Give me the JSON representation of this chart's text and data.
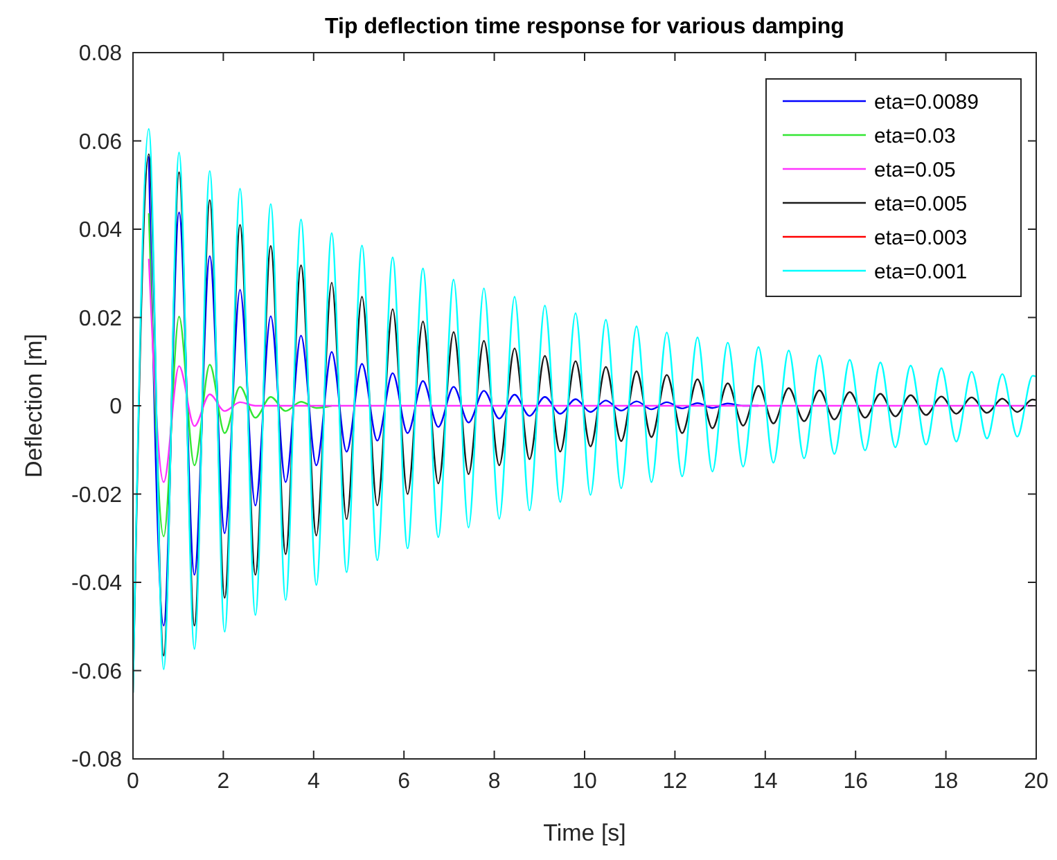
{
  "chart_data": {
    "type": "line",
    "title": "Tip deflection time response for various damping",
    "xlabel": "Time [s]",
    "ylabel": "Deflection [m]",
    "x": [
      0,
      0.35,
      0.68,
      1.02,
      1.36,
      1.7,
      2.03,
      2.37,
      2.71,
      3.05,
      3.38,
      3.72,
      4.06,
      4.4,
      4.73,
      5.07,
      5.41,
      5.75,
      6.08,
      6.42,
      6.76,
      7.1,
      7.43,
      7.77,
      8.11,
      8.45,
      8.78,
      9.12,
      9.46,
      9.8,
      10.13,
      10.47,
      10.81,
      11.15,
      11.48,
      11.82,
      12.16,
      12.5,
      12.83,
      13.17,
      13.51,
      13.85,
      14.18,
      14.52,
      14.86,
      15.2,
      15.53,
      15.87,
      16.21,
      16.55,
      16.88,
      17.22,
      17.56,
      17.9,
      18.23,
      18.57,
      18.91,
      19.25,
      19.58,
      19.92,
      20
    ],
    "series": [
      {
        "name": "eta=0.0089",
        "color": "#0000ff",
        "values": [
          null,
          0.0565,
          -0.0498,
          0.0438,
          -0.0383,
          0.0339,
          -0.0289,
          0.0263,
          -0.0226,
          0.0203,
          -0.0173,
          0.0159,
          -0.0135,
          0.0122,
          -0.0104,
          0.0095,
          -0.0079,
          0.0074,
          -0.0062,
          0.0056,
          -0.0048,
          0.0043,
          -0.0038,
          0.0034,
          -0.0029,
          0.0025,
          -0.0023,
          0.002,
          -0.0018,
          0.0015,
          -0.0014,
          0.0012,
          -0.0011,
          0.001,
          -0.0008,
          0.0008,
          -0.0006,
          0.0006,
          -0.0005,
          0.0005,
          0,
          0,
          null,
          null,
          null,
          null,
          null,
          null,
          null,
          null,
          null,
          null,
          null,
          null,
          null,
          null,
          null,
          null,
          null,
          null,
          null
        ]
      },
      {
        "name": "eta=0.03",
        "color": "#33e633",
        "values": [
          null,
          0.0436,
          -0.0296,
          0.0202,
          -0.0135,
          0.0093,
          -0.0062,
          0.0043,
          -0.0027,
          0.002,
          -0.0012,
          0.0009,
          -0.0005,
          0,
          null,
          null,
          null,
          null,
          null,
          null,
          null,
          null,
          null,
          null,
          null,
          null,
          null,
          null,
          null,
          null,
          null,
          null,
          null,
          null,
          null,
          null,
          null,
          null,
          null,
          null,
          null,
          null,
          null,
          null,
          null,
          null,
          null,
          null,
          null,
          null,
          null,
          null,
          null,
          null,
          null,
          null,
          null,
          null,
          null,
          null,
          null
        ]
      },
      {
        "name": "eta=0.05",
        "color": "#ff33ff",
        "values": [
          null,
          0.0333,
          -0.0173,
          0.009,
          -0.0046,
          0.0026,
          -0.0012,
          0.0008,
          0,
          0,
          0,
          0,
          0,
          0,
          0,
          0,
          0,
          0,
          0,
          0,
          0,
          0,
          0,
          0,
          0,
          0,
          0,
          0,
          0,
          0,
          0,
          0,
          0,
          0,
          0,
          0,
          0,
          0,
          0,
          0,
          0,
          0,
          0,
          0,
          0,
          0,
          0,
          0,
          0,
          0,
          0,
          0,
          0,
          0,
          0,
          0,
          0,
          0,
          0,
          0,
          null
        ]
      },
      {
        "name": "eta=0.005",
        "color": "#1a1a1a",
        "values": [
          -0.065,
          0.057,
          -0.0566,
          0.0529,
          -0.0498,
          0.0466,
          -0.0435,
          0.041,
          -0.0383,
          0.0362,
          -0.0336,
          0.0318,
          -0.0294,
          0.0279,
          -0.0257,
          0.0247,
          -0.0226,
          0.0219,
          -0.02,
          0.0191,
          -0.0176,
          0.0167,
          -0.0155,
          0.0147,
          -0.0135,
          0.013,
          -0.0121,
          0.0113,
          -0.0104,
          0.0101,
          -0.0092,
          0.0088,
          -0.008,
          0.0078,
          -0.0071,
          0.007,
          -0.0062,
          0.006,
          -0.0051,
          0.0051,
          -0.0045,
          0.0045,
          -0.004,
          0.004,
          -0.0035,
          0.0035,
          -0.0031,
          0.0031,
          -0.0027,
          0.0027,
          -0.0024,
          0.0024,
          -0.0021,
          0.0021,
          -0.0018,
          0.0019,
          -0.0016,
          0.0016,
          -0.0014,
          0.0014,
          0.0013
        ]
      },
      {
        "name": "eta=0.003",
        "color": "#ff0000",
        "values": [
          null,
          null,
          null,
          null,
          null,
          null,
          null,
          null,
          null,
          null,
          null,
          null,
          null,
          null,
          null,
          null,
          null,
          null,
          null,
          null,
          null,
          null,
          null,
          null,
          null,
          null,
          null,
          null,
          null,
          null,
          null,
          null,
          null,
          null,
          null,
          null,
          null,
          null,
          null,
          null,
          null,
          null,
          null,
          null,
          null,
          null,
          null,
          null,
          null,
          null,
          null,
          null,
          null,
          null,
          null,
          null,
          null,
          null,
          null,
          null,
          null
        ]
      },
      {
        "name": "eta=0.001",
        "color": "#00ffff",
        "values": [
          -0.065,
          0.0627,
          -0.0597,
          0.0574,
          -0.0551,
          0.0532,
          -0.0512,
          0.0492,
          -0.0474,
          0.0457,
          -0.044,
          0.0422,
          -0.0406,
          0.0391,
          -0.0377,
          0.0363,
          -0.035,
          0.0336,
          -0.0323,
          0.0311,
          -0.0298,
          0.0286,
          -0.0276,
          0.0266,
          -0.0256,
          0.0247,
          -0.0237,
          0.0227,
          -0.0218,
          0.021,
          -0.0202,
          0.0195,
          -0.0187,
          0.018,
          -0.0173,
          0.0166,
          -0.016,
          0.0155,
          -0.0149,
          0.0143,
          -0.0138,
          0.0133,
          -0.0129,
          0.0125,
          -0.0119,
          0.0114,
          -0.0109,
          0.0104,
          -0.0101,
          0.0098,
          -0.0094,
          0.0091,
          -0.0088,
          0.0085,
          -0.0081,
          0.0077,
          -0.0074,
          0.0072,
          -0.007,
          0.0068,
          0.0066
        ]
      }
    ],
    "xlim": [
      0,
      20
    ],
    "xticks": [
      0,
      2,
      4,
      6,
      8,
      10,
      12,
      14,
      16,
      18,
      20
    ],
    "ylim": [
      -0.08,
      0.08
    ],
    "yticks": [
      -0.08,
      -0.06,
      -0.04,
      -0.02,
      0,
      0.02,
      0.04,
      0.06,
      0.08
    ],
    "grid": false,
    "legend": "top right",
    "line_style": "solid"
  }
}
